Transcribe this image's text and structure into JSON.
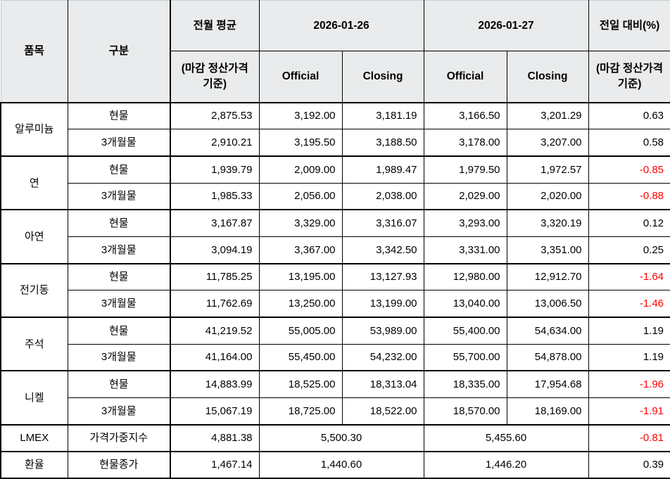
{
  "table": {
    "header": {
      "col_item": "품목",
      "col_category": "구분",
      "col_prev_avg": "전월 평균",
      "col_prev_avg_sub": "(마감 정산가격 기준)",
      "date1": "2026-01-26",
      "date2": "2026-01-27",
      "official1": "Official",
      "closing1": "Closing",
      "official2": "Official",
      "closing2": "Closing",
      "col_change": "전일 대비(%)",
      "col_change_sub": "(마감 정산가격 기준)"
    },
    "groups": [
      {
        "item": "알루미늄",
        "rows": [
          {
            "category": "현물",
            "prev_avg": "2,875.53",
            "d1_official": "3,192.00",
            "d1_closing": "3,181.19",
            "d2_official": "3,166.50",
            "d2_closing": "3,201.29",
            "change": "0.63"
          },
          {
            "category": "3개월물",
            "prev_avg": "2,910.21",
            "d1_official": "3,195.50",
            "d1_closing": "3,188.50",
            "d2_official": "3,178.00",
            "d2_closing": "3,207.00",
            "change": "0.58"
          }
        ]
      },
      {
        "item": "연",
        "rows": [
          {
            "category": "현물",
            "prev_avg": "1,939.79",
            "d1_official": "2,009.00",
            "d1_closing": "1,989.47",
            "d2_official": "1,979.50",
            "d2_closing": "1,972.57",
            "change": "-0.85"
          },
          {
            "category": "3개월물",
            "prev_avg": "1,985.33",
            "d1_official": "2,056.00",
            "d1_closing": "2,038.00",
            "d2_official": "2,029.00",
            "d2_closing": "2,020.00",
            "change": "-0.88"
          }
        ]
      },
      {
        "item": "아연",
        "rows": [
          {
            "category": "현물",
            "prev_avg": "3,167.87",
            "d1_official": "3,329.00",
            "d1_closing": "3,316.07",
            "d2_official": "3,293.00",
            "d2_closing": "3,320.19",
            "change": "0.12"
          },
          {
            "category": "3개월물",
            "prev_avg": "3,094.19",
            "d1_official": "3,367.00",
            "d1_closing": "3,342.50",
            "d2_official": "3,331.00",
            "d2_closing": "3,351.00",
            "change": "0.25"
          }
        ]
      },
      {
        "item": "전기동",
        "rows": [
          {
            "category": "현물",
            "prev_avg": "11,785.25",
            "d1_official": "13,195.00",
            "d1_closing": "13,127.93",
            "d2_official": "12,980.00",
            "d2_closing": "12,912.70",
            "change": "-1.64"
          },
          {
            "category": "3개월물",
            "prev_avg": "11,762.69",
            "d1_official": "13,250.00",
            "d1_closing": "13,199.00",
            "d2_official": "13,040.00",
            "d2_closing": "13,006.50",
            "change": "-1.46"
          }
        ]
      },
      {
        "item": "주석",
        "rows": [
          {
            "category": "현물",
            "prev_avg": "41,219.52",
            "d1_official": "55,005.00",
            "d1_closing": "53,989.00",
            "d2_official": "55,400.00",
            "d2_closing": "54,634.00",
            "change": "1.19"
          },
          {
            "category": "3개월물",
            "prev_avg": "41,164.00",
            "d1_official": "55,450.00",
            "d1_closing": "54,232.00",
            "d2_official": "55,700.00",
            "d2_closing": "54,878.00",
            "change": "1.19"
          }
        ]
      },
      {
        "item": "니켈",
        "rows": [
          {
            "category": "현물",
            "prev_avg": "14,883.99",
            "d1_official": "18,525.00",
            "d1_closing": "18,313.04",
            "d2_official": "18,335.00",
            "d2_closing": "17,954.68",
            "change": "-1.96"
          },
          {
            "category": "3개월물",
            "prev_avg": "15,067.19",
            "d1_official": "18,725.00",
            "d1_closing": "18,522.00",
            "d2_official": "18,570.00",
            "d2_closing": "18,169.00",
            "change": "-1.91"
          }
        ]
      },
      {
        "item": "LMEX",
        "rows": [
          {
            "category": "가격가중지수",
            "prev_avg": "4,881.38",
            "d1_merged": "5,500.30",
            "d2_merged": "5,455.60",
            "change": "-0.81"
          }
        ]
      },
      {
        "item": "환율",
        "rows": [
          {
            "category": "현물종가",
            "prev_avg": "1,467.14",
            "d1_merged": "1,440.60",
            "d2_merged": "1,446.20",
            "change": "0.39"
          }
        ]
      }
    ],
    "colors": {
      "negative": "#ff0000",
      "header_bg": "#e9ebec",
      "border_dark": "#000000",
      "border_light": "#c9cdd1"
    }
  }
}
